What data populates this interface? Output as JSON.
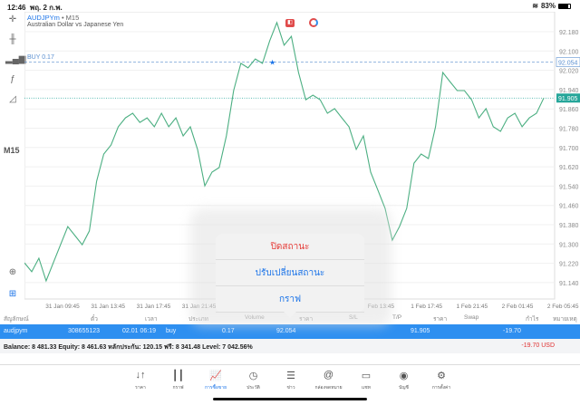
{
  "status": {
    "time": "12:46",
    "date": "พฤ. 2 ก.พ.",
    "battery": "83%",
    "battery_level": 0.83
  },
  "toolbar": {
    "timeframe": "M15",
    "icons": [
      "crosshair-icon",
      "candlestick-icon",
      "indicators-icon",
      "function-icon",
      "objects-icon"
    ],
    "bottom_icons": [
      "zoom-icon",
      "trade-icon"
    ]
  },
  "chart": {
    "symbol": "AUDJPYm",
    "sep": "•",
    "tf": "M15",
    "description": "Australian Dollar vs Japanese Yen",
    "buy_label": "BUY 0.17",
    "buy_price_label": "92.054",
    "bid_label": "91.905",
    "colors": {
      "line": "#4caf82",
      "bid": "#26a69a",
      "buy": "#5a8fd0"
    }
  },
  "chart_data": {
    "type": "line",
    "ylim": [
      91.1,
      92.24
    ],
    "yticks": [
      "92.180",
      "92.100",
      "92.020",
      "91.940",
      "91.860",
      "91.780",
      "91.700",
      "91.620",
      "91.540",
      "91.460",
      "91.380",
      "91.300",
      "91.220",
      "91.140"
    ],
    "xticks": [
      "31 Jan 09:45",
      "31 Jan 13:45",
      "31 Jan 17:45",
      "31 Jan 21:45",
      "",
      "",
      "",
      "Feb 13:45",
      "1 Feb 17:45",
      "1 Feb 21:45",
      "2 Feb 01:45",
      "2 Feb 05:45"
    ],
    "buy_price": 92.054,
    "bid": 91.905,
    "values": [
      91.222,
      91.185,
      91.241,
      91.147,
      91.222,
      91.297,
      91.372,
      91.335,
      91.297,
      91.354,
      91.56,
      91.673,
      91.71,
      91.786,
      91.823,
      91.842,
      91.804,
      91.823,
      91.786,
      91.842,
      91.786,
      91.823,
      91.748,
      91.786,
      91.692,
      91.541,
      91.598,
      91.617,
      91.748,
      91.936,
      92.049,
      92.03,
      92.067,
      92.049,
      92.142,
      92.218,
      92.124,
      92.161,
      92.011,
      91.898,
      91.917,
      91.898,
      91.842,
      91.861,
      91.823,
      91.786,
      91.692,
      91.748,
      91.598,
      91.523,
      91.448,
      91.316,
      91.372,
      91.448,
      91.635,
      91.673,
      91.654,
      91.786,
      92.011,
      91.973,
      91.936,
      91.936,
      91.898,
      91.823,
      91.861,
      91.786,
      91.767,
      91.823,
      91.842,
      91.786,
      91.823,
      91.842,
      91.905
    ]
  },
  "popup": {
    "items": [
      "ปิดสถานะ",
      "ปรับเปลี่ยนสถานะ",
      "กราฟ"
    ]
  },
  "table": {
    "headers": [
      "สัญลักษณ์",
      "ตั๋ว",
      "เวลา",
      "ประเภท",
      "Volume",
      "ราคา",
      "S/L",
      "T/P",
      "ราคา",
      "Swap",
      "กำไร",
      "หมายเหตุ"
    ],
    "row": [
      "audjpym",
      "308655123",
      "02.01 06:19",
      "buy",
      "0.17",
      "92.054",
      "",
      "",
      "91.905",
      "",
      "-19.70",
      ""
    ]
  },
  "balance": {
    "text": "Balance: 8 481.33 Equity: 8 461.63 หลักประกัน: 120.15 ฟรี: 8 341.48 Level: 7 042.56%",
    "profit": "-19.70  USD"
  },
  "tabs": [
    {
      "label": "ราคา",
      "icon": "↓↑"
    },
    {
      "label": "กราฟ",
      "icon": "┃┃"
    },
    {
      "label": "การซื้อขาย",
      "icon": "📈"
    },
    {
      "label": "ประวัติ",
      "icon": "◷"
    },
    {
      "label": "ข่าว",
      "icon": "☰"
    },
    {
      "label": "กล่องจดหมาย",
      "icon": "@"
    },
    {
      "label": "แชท",
      "icon": "▭"
    },
    {
      "label": "บัญชี",
      "icon": "◉"
    },
    {
      "label": "การตั้งค่า",
      "icon": "⚙"
    }
  ],
  "active_tab": 2
}
